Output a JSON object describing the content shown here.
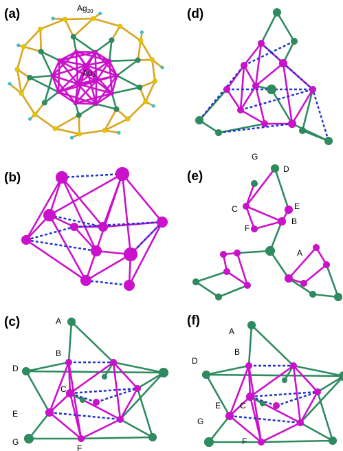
{
  "panels": [
    {
      "label": "(a)",
      "atoms": [
        {
          "symbol": "Ag",
          "index": "20"
        },
        {
          "symbol": "Au",
          "index": "1"
        }
      ]
    },
    {
      "label": "(b)"
    },
    {
      "label": "(c)",
      "atoms": [
        "A",
        "B",
        "D",
        "E",
        "C",
        "G",
        "F"
      ]
    },
    {
      "label": "(d)"
    },
    {
      "label": "(e)",
      "atoms": [
        "G",
        "D",
        "C",
        "E",
        "F",
        "B",
        "A"
      ]
    },
    {
      "label": "(f)",
      "atoms": [
        "A",
        "B",
        "D",
        "E",
        "C",
        "G",
        "F"
      ]
    }
  ]
}
